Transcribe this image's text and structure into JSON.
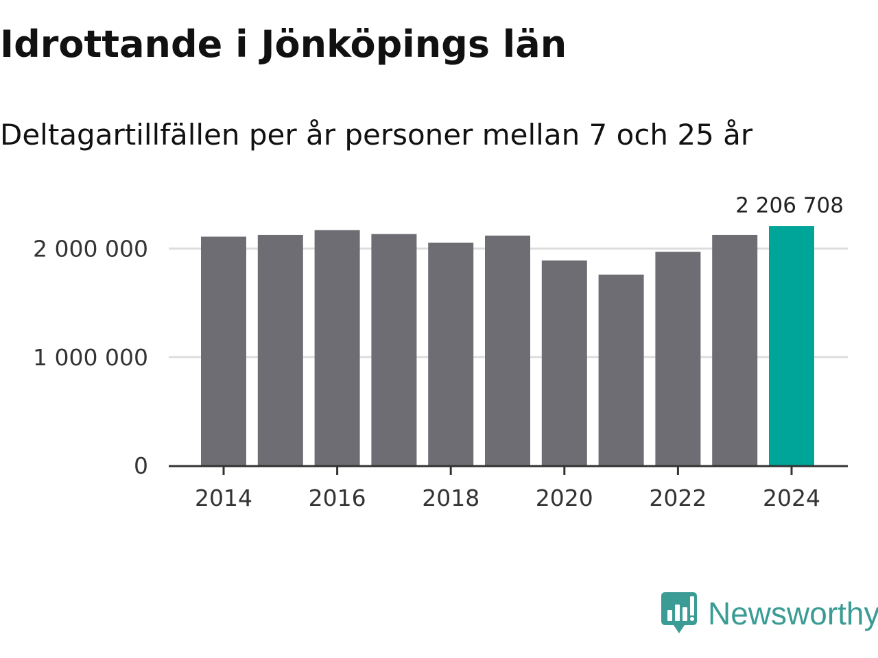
{
  "title": "Idrottande i Jönköpings län",
  "subtitle": "Deltagartillfällen per år personer mellan 7 och 25 år",
  "brand": {
    "name": "Newsworthy",
    "color": "#3a9c94"
  },
  "colors": {
    "bar": "#6e6d73",
    "highlight": "#00a59a",
    "grid": "#dddddd",
    "axis": "#333333"
  },
  "chart_data": {
    "type": "bar",
    "categories": [
      "2014",
      "2015",
      "2016",
      "2017",
      "2018",
      "2019",
      "2020",
      "2021",
      "2022",
      "2023",
      "2024"
    ],
    "values": [
      2110000,
      2125000,
      2170000,
      2135000,
      2055000,
      2120000,
      1890000,
      1760000,
      1970000,
      2125000,
      2206708
    ],
    "highlight_index": 10,
    "value_labels": [
      {
        "index": 10,
        "text": "2 206 708"
      }
    ],
    "xticks": [
      "2014",
      "2016",
      "2018",
      "2020",
      "2022",
      "2024"
    ],
    "yticks": [
      0,
      1000000,
      2000000
    ],
    "ytick_labels": [
      "0",
      "1 000 000",
      "2 000 000"
    ],
    "ylim": [
      0,
      2206708
    ],
    "grid": true,
    "xlabel": "",
    "ylabel": ""
  }
}
